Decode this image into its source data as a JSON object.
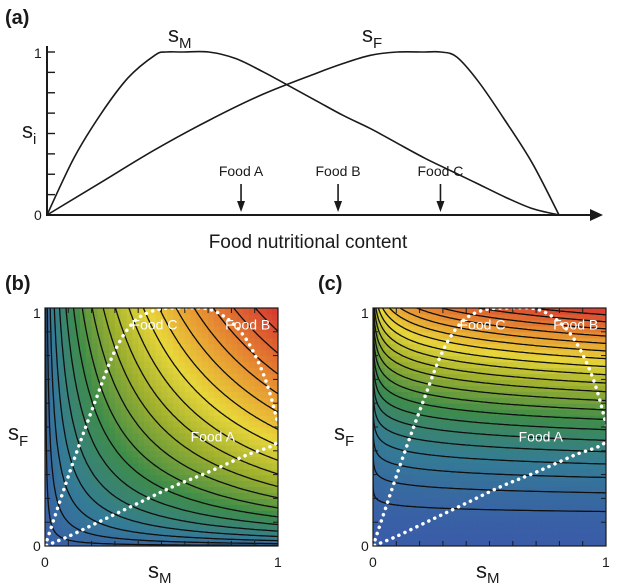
{
  "chart_data": [
    {
      "panel": "(a)",
      "type": "line",
      "xlabel": "Food nutritional content",
      "ylabel": "s",
      "ylabel_sub": "i",
      "y_ticks": [
        "0",
        "1"
      ],
      "ylim": [
        0,
        1
      ],
      "xlim": [
        0,
        1
      ],
      "series": [
        {
          "name": "s",
          "name_sub": "M",
          "x": [
            0,
            0.05,
            0.1,
            0.15,
            0.2,
            0.22,
            0.25,
            0.3,
            0.35,
            0.4,
            0.45,
            0.5,
            0.55,
            0.6,
            0.65,
            0.7,
            0.75,
            0.8,
            0.85,
            0.9,
            0.95
          ],
          "y": [
            0,
            0.35,
            0.62,
            0.84,
            0.98,
            1,
            1,
            1,
            0.96,
            0.88,
            0.79,
            0.7,
            0.61,
            0.53,
            0.44,
            0.35,
            0.27,
            0.19,
            0.11,
            0.04,
            0
          ]
        },
        {
          "name": "s",
          "name_sub": "F",
          "x": [
            0,
            0.1,
            0.2,
            0.3,
            0.4,
            0.5,
            0.55,
            0.6,
            0.65,
            0.7,
            0.73,
            0.76,
            0.8,
            0.85,
            0.9,
            0.95
          ],
          "y": [
            0,
            0.2,
            0.4,
            0.58,
            0.74,
            0.87,
            0.93,
            0.98,
            1,
            1,
            1,
            0.97,
            0.82,
            0.58,
            0.32,
            0
          ]
        }
      ],
      "annotations": [
        {
          "text": "Food A",
          "x": 0.36
        },
        {
          "text": "Food B",
          "x": 0.54
        },
        {
          "text": "Food C",
          "x": 0.73
        }
      ]
    },
    {
      "panel": "(b)",
      "type": "heatmap",
      "xlabel": "s",
      "xlabel_sub": "M",
      "ylabel": "s",
      "ylabel_sub": "F",
      "xlim": [
        0,
        1
      ],
      "ylim": [
        0,
        1
      ],
      "x_ticks": [
        "0",
        "1"
      ],
      "y_ticks": [
        "0",
        "1"
      ],
      "exponents": [
        0.5,
        0.5
      ],
      "contours": 20,
      "region_labels": [
        {
          "text": "Food C",
          "x": 0.47,
          "y": 0.93
        },
        {
          "text": "Food B",
          "x": 0.87,
          "y": 0.93
        },
        {
          "text": "Food A",
          "x": 0.72,
          "y": 0.46
        }
      ]
    },
    {
      "panel": "(c)",
      "type": "heatmap",
      "xlabel": "s",
      "xlabel_sub": "M",
      "ylabel": "s",
      "ylabel_sub": "F",
      "xlim": [
        0,
        1
      ],
      "ylim": [
        0,
        1
      ],
      "x_ticks": [
        "0",
        "1"
      ],
      "y_ticks": [
        "0",
        "1"
      ],
      "exponents": [
        0.12,
        1.6
      ],
      "contours": 22,
      "region_labels": [
        {
          "text": "Food C",
          "x": 0.47,
          "y": 0.93
        },
        {
          "text": "Food B",
          "x": 0.87,
          "y": 0.93
        },
        {
          "text": "Food A",
          "x": 0.72,
          "y": 0.46
        }
      ]
    }
  ]
}
